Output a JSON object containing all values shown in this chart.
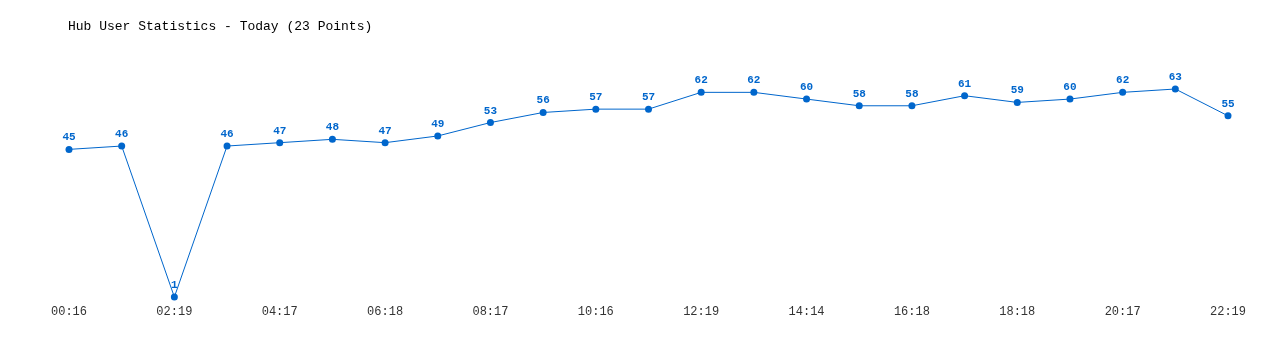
{
  "chart_data": {
    "type": "line",
    "title": "Hub User Statistics - Today (23 Points)",
    "categories": [
      "00:16",
      null,
      "02:19",
      null,
      "04:17",
      null,
      "06:18",
      null,
      "08:17",
      null,
      "10:16",
      null,
      "12:19",
      null,
      "14:14",
      null,
      "16:18",
      null,
      "18:18",
      null,
      "20:17",
      null,
      "22:19"
    ],
    "series": [
      {
        "color": "#0066cc",
        "values": [
          45,
          46,
          1,
          46,
          47,
          48,
          47,
          49,
          53,
          56,
          57,
          57,
          62,
          62,
          60,
          58,
          58,
          61,
          59,
          60,
          62,
          63,
          55
        ]
      }
    ],
    "data_labels": true,
    "marker": "circle",
    "line_style": "solid"
  }
}
